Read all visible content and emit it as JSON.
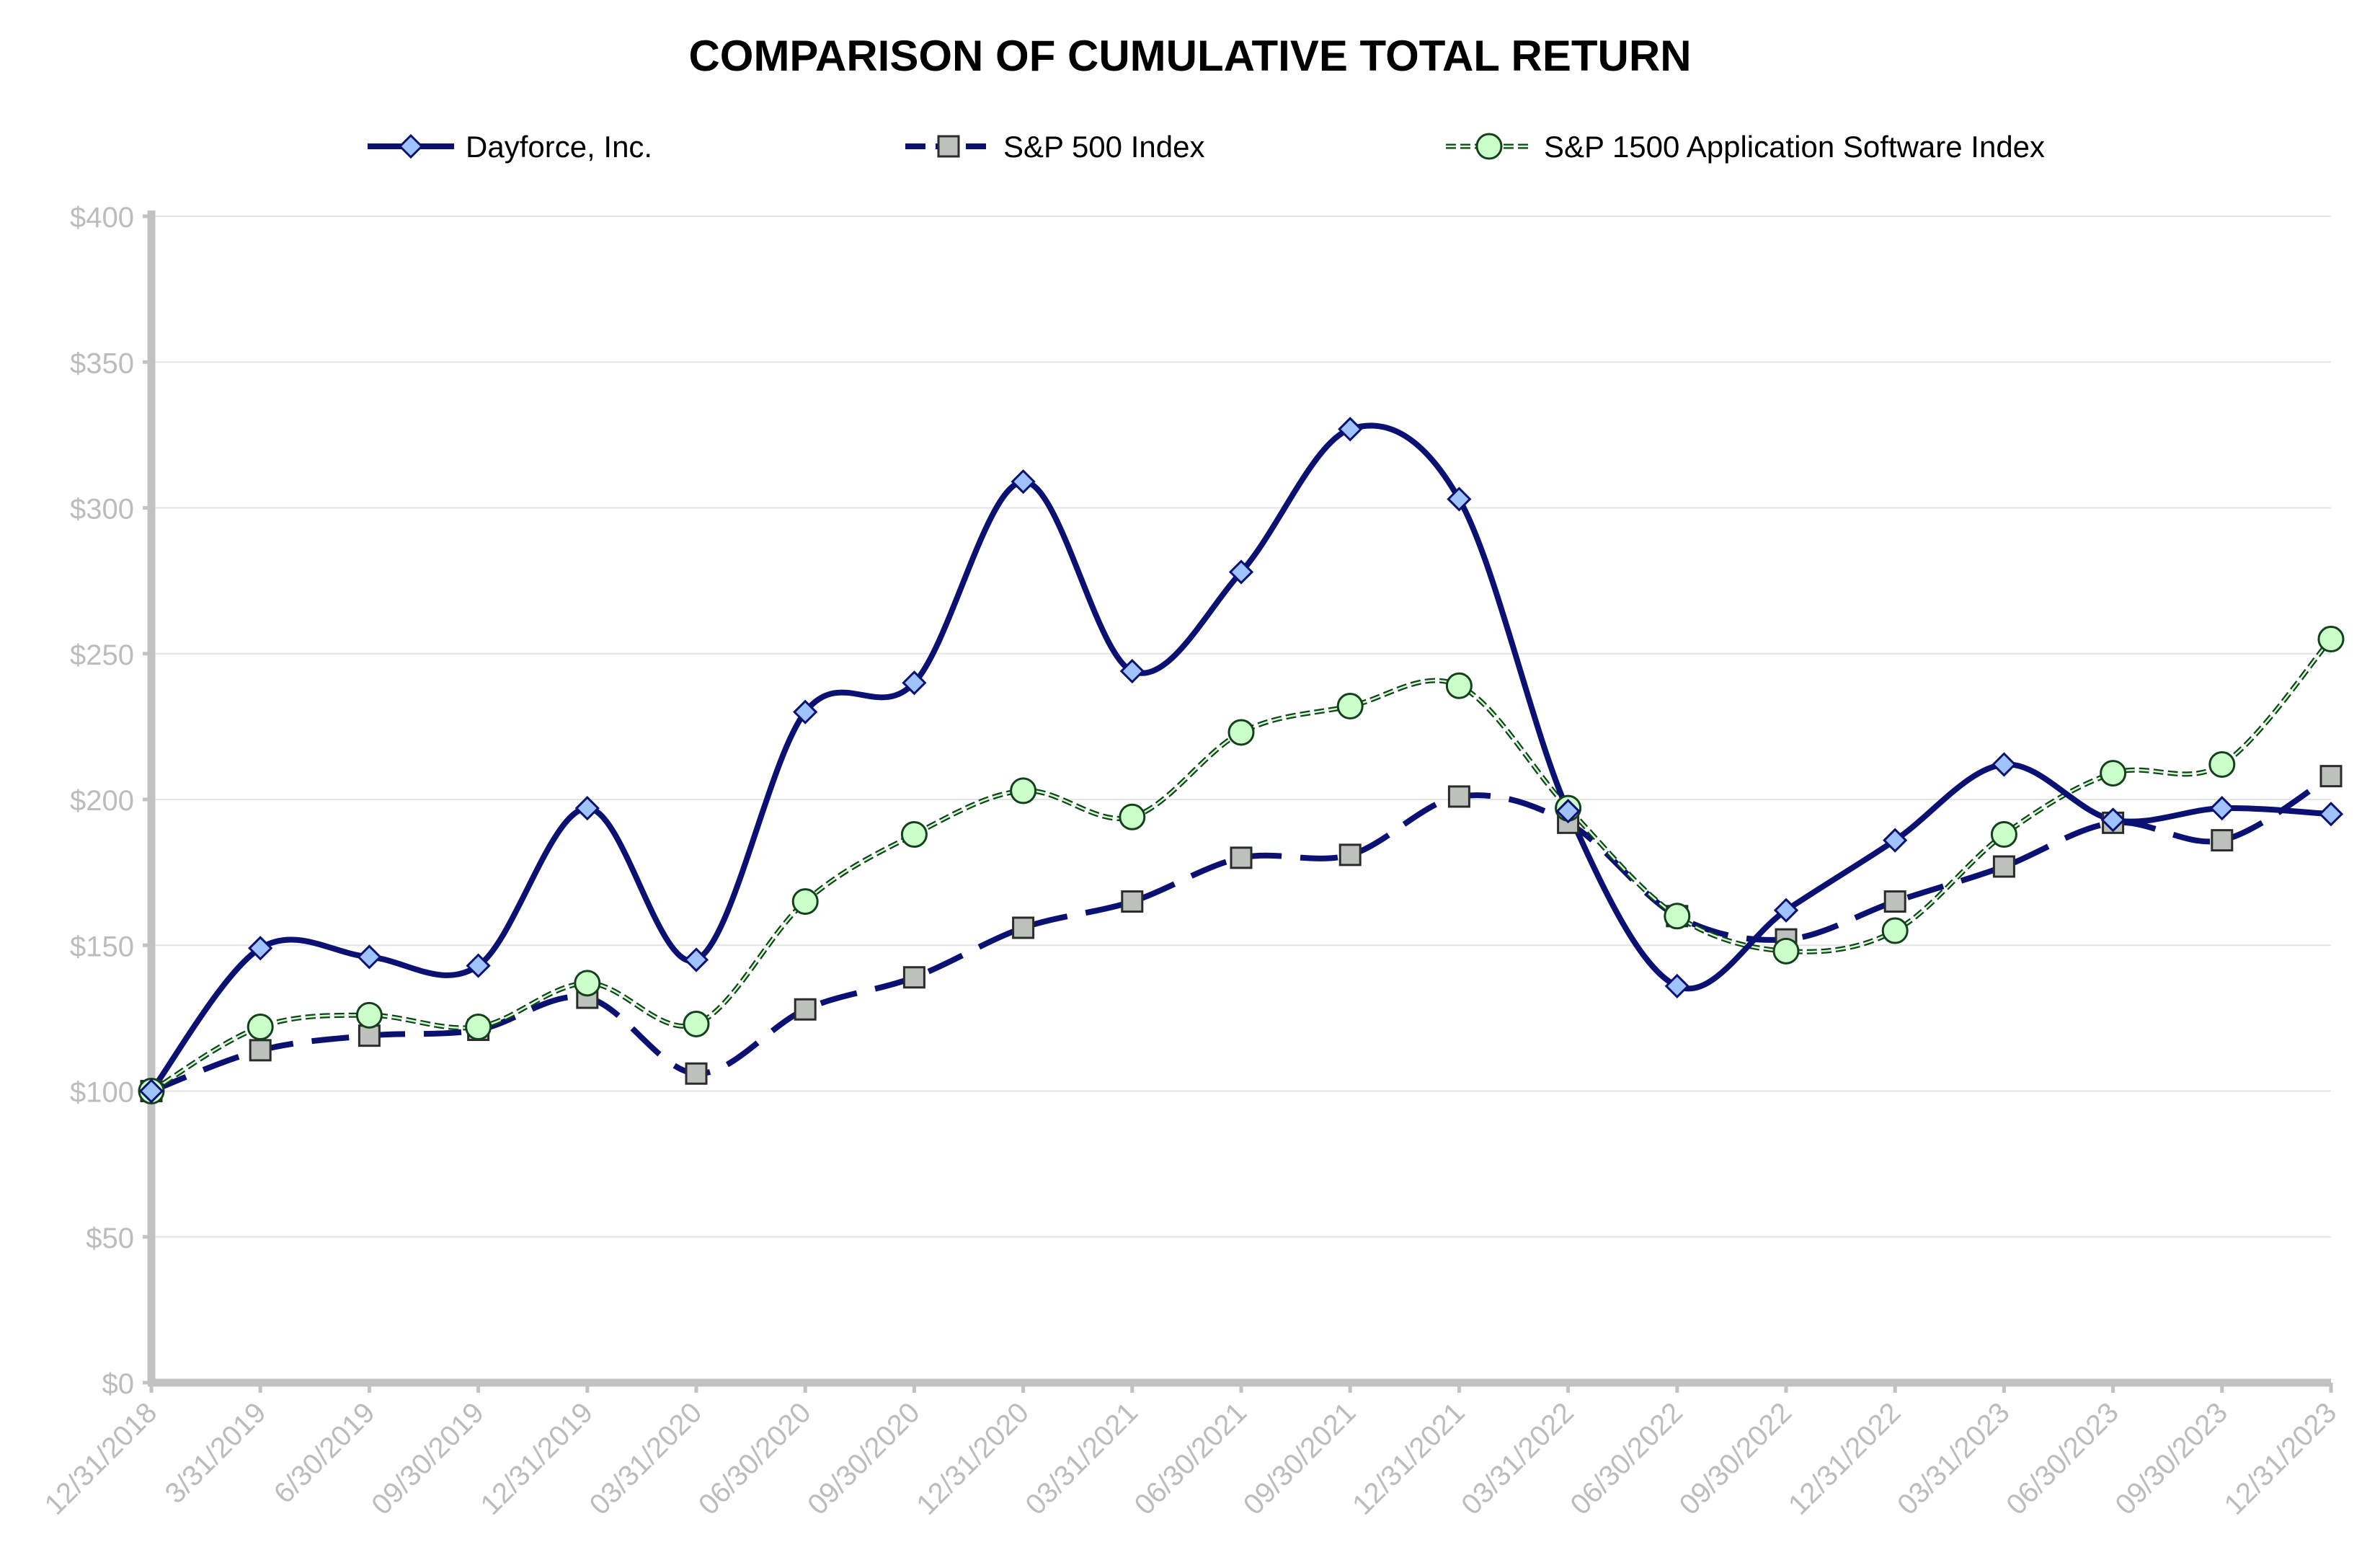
{
  "chart_data": {
    "type": "line",
    "title": "COMPARISON OF CUMULATIVE TOTAL RETURN",
    "xlabel": "",
    "ylabel": "",
    "ylim": [
      0,
      400
    ],
    "yticks": [
      0,
      50,
      100,
      150,
      200,
      250,
      300,
      350,
      400
    ],
    "ytick_labels": [
      "$0",
      "$50",
      "$100",
      "$150",
      "$200",
      "$250",
      "$300",
      "$350",
      "$400"
    ],
    "grid": true,
    "legend_position": "top",
    "categories": [
      "12/31/2018",
      "3/31/2019",
      "6/30/2019",
      "09/30/2019",
      "12/31/2019",
      "03/31/2020",
      "06/30/2020",
      "09/30/2020",
      "12/31/2020",
      "03/31/2021",
      "06/30/2021",
      "09/30/2021",
      "12/31/2021",
      "03/31/2022",
      "06/30/2022",
      "09/30/2022",
      "12/31/2022",
      "03/31/2023",
      "06/30/2023",
      "09/30/2023",
      "12/31/2023"
    ],
    "series": [
      {
        "name": "Dayforce, Inc.",
        "marker": "diamond",
        "line_style": "solid",
        "line_color": "#0b1173",
        "marker_fill": "#9ec3ff",
        "values": [
          100,
          149,
          146,
          143,
          197,
          145,
          230,
          240,
          309,
          244,
          278,
          327,
          303,
          196,
          136,
          162,
          186,
          212,
          193,
          197,
          195
        ]
      },
      {
        "name": "S&P 500 Index",
        "marker": "square",
        "line_style": "dashed",
        "line_color": "#0b1173",
        "marker_fill": "#bcc1bb",
        "values": [
          100,
          114,
          119,
          121,
          132,
          106,
          128,
          139,
          156,
          165,
          180,
          181,
          201,
          192,
          160,
          152,
          165,
          177,
          192,
          186,
          208
        ]
      },
      {
        "name": "S&P 1500 Application Software Index",
        "marker": "circle",
        "line_style": "dotted",
        "line_color": "#14401e",
        "marker_fill": "#caffc9",
        "values": [
          100,
          122,
          126,
          122,
          137,
          123,
          165,
          188,
          203,
          194,
          223,
          232,
          239,
          197,
          160,
          148,
          155,
          188,
          209,
          212,
          255
        ]
      }
    ]
  }
}
